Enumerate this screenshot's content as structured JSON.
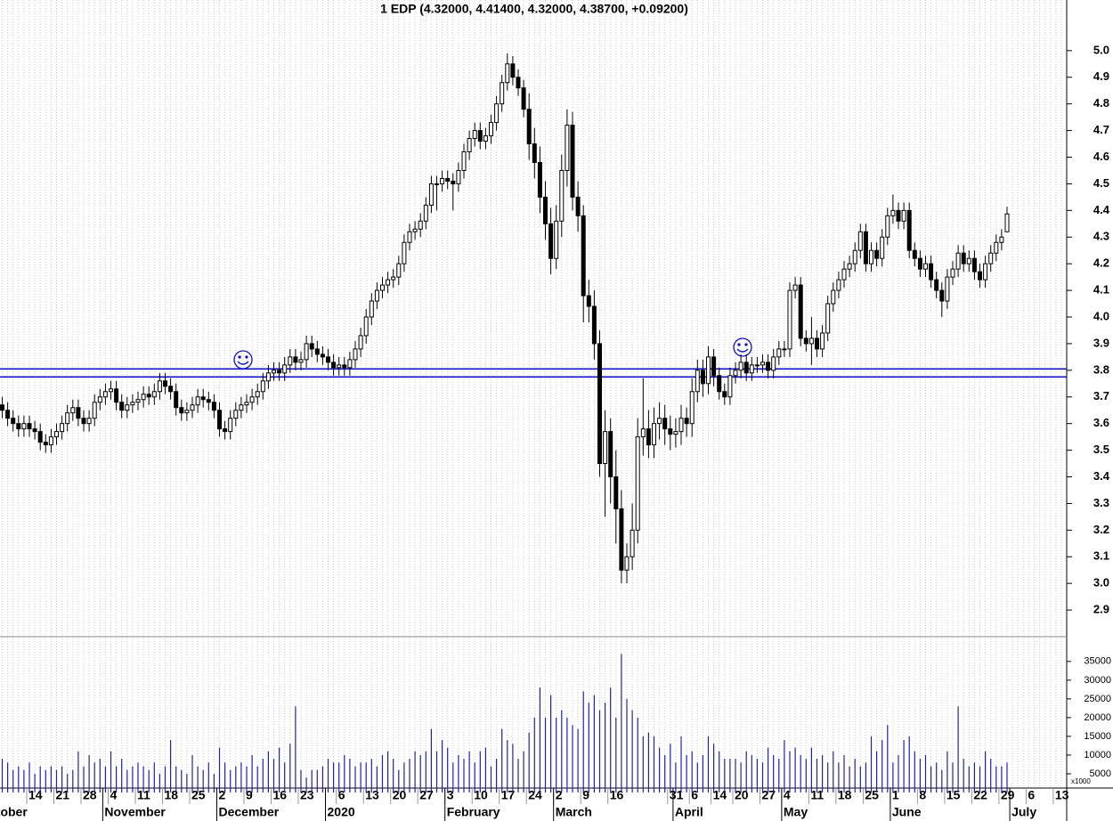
{
  "chart_data": {
    "type": "candlestick",
    "title": "1 EDP (4.32000, 4.41400, 4.32000, 4.38700, +0.09200)",
    "categories": [
      null,
      null,
      null,
      null,
      null,
      "14",
      null,
      null,
      null,
      null,
      "21",
      null,
      null,
      null,
      null,
      "28",
      null,
      null,
      null,
      null,
      "4",
      null,
      null,
      null,
      null,
      "11",
      null,
      null,
      null,
      null,
      "18",
      null,
      null,
      null,
      null,
      "25",
      null,
      null,
      null,
      null,
      "2",
      null,
      null,
      null,
      null,
      "9",
      null,
      null,
      null,
      null,
      "16",
      null,
      null,
      null,
      null,
      "23",
      null,
      null,
      null,
      null,
      null,
      null,
      "6",
      null,
      null,
      null,
      null,
      "13",
      null,
      null,
      null,
      null,
      "20",
      null,
      null,
      null,
      null,
      "27",
      null,
      null,
      null,
      null,
      "3",
      null,
      null,
      null,
      null,
      "10",
      null,
      null,
      null,
      null,
      "17",
      null,
      null,
      null,
      null,
      "24",
      null,
      null,
      null,
      null,
      "2",
      null,
      null,
      null,
      null,
      "9",
      null,
      null,
      null,
      null,
      "16",
      null,
      null,
      null,
      null,
      null,
      null,
      null,
      null,
      null,
      null,
      "31",
      null,
      null,
      null,
      "6",
      null,
      null,
      null,
      "14",
      null,
      null,
      null,
      "20",
      null,
      null,
      null,
      null,
      "27",
      null,
      null,
      null,
      "4",
      null,
      null,
      null,
      null,
      "11",
      null,
      null,
      null,
      null,
      "18",
      null,
      null,
      null,
      null,
      "25",
      null,
      null,
      null,
      null,
      "1",
      null,
      null,
      null,
      null,
      "8",
      null,
      null,
      null,
      null,
      "15",
      null,
      null,
      null,
      null,
      "22",
      null,
      null,
      null,
      null,
      "29",
      null,
      null,
      null,
      null,
      "6",
      null,
      null,
      null,
      null,
      "13",
      null
    ],
    "month_labels": [
      {
        "index": -4,
        "label": "October"
      },
      {
        "index": 19,
        "label": "November"
      },
      {
        "index": 40,
        "label": "December"
      },
      {
        "index": 60,
        "label": "2020"
      },
      {
        "index": 82,
        "label": "February"
      },
      {
        "index": 102,
        "label": "March"
      },
      {
        "index": 124,
        "label": "April"
      },
      {
        "index": 144,
        "label": "May"
      },
      {
        "index": 164,
        "label": "June"
      },
      {
        "index": 186,
        "label": "July"
      }
    ],
    "open": [
      3.67,
      3.65,
      3.62,
      3.6,
      3.58,
      3.6,
      3.58,
      3.57,
      3.53,
      3.52,
      3.55,
      3.57,
      3.6,
      3.64,
      3.66,
      3.62,
      3.6,
      3.62,
      3.68,
      3.7,
      3.72,
      3.73,
      3.68,
      3.65,
      3.67,
      3.68,
      3.69,
      3.71,
      3.7,
      3.72,
      3.76,
      3.74,
      3.72,
      3.66,
      3.64,
      3.65,
      3.67,
      3.7,
      3.69,
      3.68,
      3.65,
      3.58,
      3.57,
      3.62,
      3.65,
      3.67,
      3.68,
      3.7,
      3.72,
      3.76,
      3.79,
      3.8,
      3.79,
      3.82,
      3.85,
      3.83,
      3.84,
      3.9,
      3.88,
      3.86,
      3.85,
      3.83,
      3.81,
      3.82,
      3.81,
      3.84,
      3.88,
      3.93,
      4.0,
      4.06,
      4.1,
      4.12,
      4.14,
      4.15,
      4.2,
      4.28,
      4.32,
      4.33,
      4.36,
      4.42,
      4.5,
      4.5,
      4.52,
      4.51,
      4.5,
      4.55,
      4.62,
      4.67,
      4.7,
      4.66,
      4.68,
      4.73,
      4.8,
      4.88,
      4.95,
      4.9,
      4.86,
      4.78,
      4.65,
      4.58,
      4.45,
      4.35,
      4.22,
      4.36,
      4.55,
      4.72,
      4.45,
      4.38,
      4.08,
      4.04,
      3.9,
      3.45,
      3.57,
      3.4,
      3.28,
      3.05,
      3.1,
      3.2,
      3.55,
      3.58,
      3.52,
      3.6,
      3.62,
      3.58,
      3.56,
      3.57,
      3.62,
      3.6,
      3.72,
      3.8,
      3.75,
      3.85,
      3.78,
      3.72,
      3.7,
      3.78,
      3.8,
      3.83,
      3.79,
      3.82,
      3.82,
      3.83,
      3.8,
      3.85,
      3.88,
      3.88,
      4.1,
      4.12,
      3.92,
      3.9,
      3.92,
      3.88,
      3.94,
      4.05,
      4.1,
      4.14,
      4.18,
      4.2,
      4.25,
      4.32,
      4.2,
      4.25,
      4.22,
      4.3,
      4.38,
      4.4,
      4.36,
      4.4,
      4.25,
      4.22,
      4.18,
      4.2,
      4.14,
      4.1,
      4.06,
      4.15,
      4.18,
      4.24,
      4.2,
      4.22,
      4.17,
      4.14,
      4.2,
      4.24,
      4.28,
      4.32,
      null,
      null,
      null,
      null,
      null,
      null,
      null,
      null,
      null,
      null
    ],
    "high": [
      3.7,
      3.68,
      3.65,
      3.63,
      3.63,
      3.63,
      3.61,
      3.6,
      3.56,
      3.58,
      3.6,
      3.63,
      3.67,
      3.69,
      3.69,
      3.65,
      3.65,
      3.71,
      3.73,
      3.75,
      3.76,
      3.76,
      3.71,
      3.7,
      3.71,
      3.72,
      3.74,
      3.74,
      3.75,
      3.79,
      3.79,
      3.77,
      3.75,
      3.69,
      3.68,
      3.7,
      3.73,
      3.73,
      3.72,
      3.71,
      3.68,
      3.61,
      3.65,
      3.68,
      3.7,
      3.71,
      3.73,
      3.75,
      3.79,
      3.82,
      3.83,
      3.83,
      3.85,
      3.88,
      3.88,
      3.87,
      3.93,
      3.93,
      3.91,
      3.89,
      3.88,
      3.86,
      3.85,
      3.85,
      3.87,
      3.91,
      3.96,
      4.03,
      4.09,
      4.13,
      4.15,
      4.17,
      4.18,
      4.23,
      4.31,
      4.35,
      4.36,
      4.39,
      4.45,
      4.53,
      4.53,
      4.55,
      4.55,
      4.54,
      4.58,
      4.65,
      4.7,
      4.73,
      4.73,
      4.71,
      4.76,
      4.83,
      4.91,
      4.99,
      4.98,
      4.93,
      4.89,
      4.84,
      4.71,
      4.64,
      4.51,
      4.41,
      4.42,
      4.61,
      4.78,
      4.77,
      4.51,
      4.42,
      4.14,
      4.1,
      3.95,
      3.65,
      3.62,
      3.5,
      3.35,
      3.15,
      3.3,
      3.62,
      3.77,
      3.65,
      3.66,
      3.68,
      3.67,
      3.63,
      3.62,
      3.67,
      3.66,
      3.77,
      3.84,
      3.84,
      3.89,
      3.88,
      3.81,
      3.75,
      3.81,
      3.83,
      3.86,
      3.86,
      3.85,
      3.85,
      3.86,
      3.86,
      3.88,
      3.91,
      3.91,
      4.13,
      4.15,
      4.15,
      3.95,
      4.0,
      3.95,
      3.97,
      4.08,
      4.13,
      4.17,
      4.21,
      4.23,
      4.28,
      4.35,
      4.35,
      4.28,
      4.28,
      4.33,
      4.41,
      4.46,
      4.43,
      4.43,
      4.43,
      4.28,
      4.25,
      4.23,
      4.23,
      4.17,
      4.13,
      4.18,
      4.21,
      4.27,
      4.27,
      4.25,
      4.25,
      4.2,
      4.23,
      4.27,
      4.31,
      4.33,
      4.414,
      null,
      null,
      null,
      null,
      null,
      null,
      null,
      null,
      null,
      null
    ],
    "low": [
      3.62,
      3.59,
      3.57,
      3.55,
      3.55,
      3.55,
      3.54,
      3.5,
      3.49,
      3.49,
      3.52,
      3.54,
      3.57,
      3.61,
      3.59,
      3.57,
      3.57,
      3.59,
      3.65,
      3.67,
      3.69,
      3.65,
      3.62,
      3.62,
      3.64,
      3.65,
      3.66,
      3.67,
      3.67,
      3.69,
      3.71,
      3.69,
      3.63,
      3.61,
      3.61,
      3.62,
      3.64,
      3.66,
      3.65,
      3.62,
      3.55,
      3.54,
      3.54,
      3.59,
      3.62,
      3.64,
      3.65,
      3.67,
      3.69,
      3.73,
      3.76,
      3.76,
      3.76,
      3.79,
      3.8,
      3.8,
      3.81,
      3.85,
      3.83,
      3.82,
      3.8,
      3.78,
      3.78,
      3.78,
      3.78,
      3.81,
      3.85,
      3.9,
      3.97,
      4.03,
      4.07,
      4.09,
      4.11,
      4.12,
      4.17,
      4.25,
      4.29,
      4.3,
      4.33,
      4.39,
      4.4,
      4.47,
      4.48,
      4.4,
      4.47,
      4.52,
      4.59,
      4.64,
      4.63,
      4.63,
      4.65,
      4.7,
      4.77,
      4.85,
      4.87,
      4.83,
      4.75,
      4.59,
      4.52,
      4.39,
      4.29,
      4.16,
      4.18,
      4.3,
      4.49,
      4.4,
      4.32,
      3.98,
      3.98,
      3.84,
      3.4,
      3.25,
      3.3,
      3.15,
      3.0,
      3.0,
      3.05,
      3.15,
      3.48,
      3.47,
      3.47,
      3.54,
      3.52,
      3.5,
      3.51,
      3.52,
      3.55,
      3.55,
      3.68,
      3.7,
      3.71,
      3.74,
      3.69,
      3.67,
      3.67,
      3.75,
      3.77,
      3.76,
      3.76,
      3.79,
      3.79,
      3.77,
      3.77,
      3.82,
      3.85,
      3.85,
      4.07,
      3.89,
      3.87,
      3.82,
      3.85,
      3.85,
      3.91,
      4.02,
      4.07,
      4.11,
      4.15,
      4.17,
      4.22,
      4.17,
      4.17,
      4.19,
      4.19,
      4.27,
      4.35,
      4.33,
      4.33,
      4.22,
      4.19,
      4.15,
      4.15,
      4.11,
      4.07,
      4.0,
      4.03,
      4.12,
      4.15,
      4.17,
      4.17,
      4.14,
      4.11,
      4.11,
      4.17,
      4.21,
      4.25,
      4.32,
      null,
      null,
      null,
      null,
      null,
      null,
      null,
      null,
      null,
      null
    ],
    "close": [
      3.65,
      3.62,
      3.6,
      3.58,
      3.6,
      3.58,
      3.57,
      3.53,
      3.52,
      3.55,
      3.57,
      3.6,
      3.64,
      3.66,
      3.62,
      3.6,
      3.62,
      3.68,
      3.7,
      3.72,
      3.73,
      3.68,
      3.65,
      3.67,
      3.68,
      3.69,
      3.71,
      3.7,
      3.72,
      3.76,
      3.74,
      3.72,
      3.66,
      3.64,
      3.65,
      3.67,
      3.7,
      3.69,
      3.68,
      3.65,
      3.58,
      3.57,
      3.62,
      3.65,
      3.67,
      3.68,
      3.7,
      3.72,
      3.76,
      3.79,
      3.8,
      3.79,
      3.82,
      3.85,
      3.83,
      3.84,
      3.9,
      3.88,
      3.86,
      3.85,
      3.83,
      3.81,
      3.82,
      3.81,
      3.84,
      3.88,
      3.93,
      4.0,
      4.06,
      4.1,
      4.12,
      4.14,
      4.15,
      4.2,
      4.28,
      4.32,
      4.33,
      4.36,
      4.42,
      4.5,
      4.5,
      4.52,
      4.51,
      4.5,
      4.55,
      4.62,
      4.67,
      4.7,
      4.66,
      4.68,
      4.73,
      4.8,
      4.88,
      4.95,
      4.9,
      4.86,
      4.78,
      4.65,
      4.58,
      4.45,
      4.35,
      4.22,
      4.36,
      4.55,
      4.72,
      4.45,
      4.38,
      4.08,
      4.04,
      3.9,
      3.45,
      3.57,
      3.4,
      3.28,
      3.05,
      3.1,
      3.2,
      3.55,
      3.58,
      3.52,
      3.6,
      3.62,
      3.58,
      3.56,
      3.57,
      3.62,
      3.6,
      3.72,
      3.8,
      3.75,
      3.85,
      3.78,
      3.72,
      3.7,
      3.78,
      3.8,
      3.83,
      3.79,
      3.82,
      3.82,
      3.83,
      3.8,
      3.85,
      3.88,
      3.88,
      4.1,
      4.12,
      3.92,
      3.9,
      3.92,
      3.88,
      3.94,
      4.05,
      4.1,
      4.14,
      4.18,
      4.2,
      4.25,
      4.32,
      4.2,
      4.25,
      4.22,
      4.3,
      4.38,
      4.4,
      4.36,
      4.4,
      4.25,
      4.22,
      4.18,
      4.2,
      4.14,
      4.1,
      4.06,
      4.15,
      4.18,
      4.24,
      4.2,
      4.22,
      4.17,
      4.14,
      4.2,
      4.24,
      4.28,
      4.3,
      4.387,
      null,
      null,
      null,
      null,
      null,
      null,
      null,
      null,
      null,
      null
    ],
    "volume": [
      9000,
      8000,
      6000,
      7000,
      6000,
      8000,
      5000,
      7000,
      6000,
      7000,
      6000,
      7000,
      5000,
      6000,
      11000,
      7000,
      10000,
      8000,
      9000,
      7000,
      11000,
      7000,
      9000,
      6000,
      7000,
      8000,
      7000,
      6000,
      8000,
      5000,
      7000,
      14000,
      7000,
      6000,
      5000,
      10000,
      7000,
      6000,
      8000,
      5000,
      12000,
      8000,
      6000,
      7000,
      8000,
      7000,
      10000,
      7000,
      9000,
      11000,
      9000,
      12000,
      8000,
      13000,
      23000,
      6000,
      4000,
      6000,
      6000,
      7000,
      9000,
      8000,
      8000,
      10000,
      9000,
      7000,
      8000,
      8000,
      9000,
      7000,
      10000,
      11000,
      9000,
      6000,
      8000,
      9000,
      11000,
      10000,
      11000,
      17000,
      11000,
      14000,
      12000,
      8000,
      10000,
      9000,
      11000,
      8000,
      11000,
      12000,
      7000,
      9000,
      17000,
      14000,
      13000,
      9000,
      11000,
      16000,
      20000,
      28000,
      20000,
      26000,
      20000,
      22000,
      20000,
      18000,
      17000,
      27000,
      24000,
      26000,
      22000,
      24000,
      28000,
      20000,
      37000,
      25000,
      22000,
      20000,
      15000,
      16000,
      15000,
      12000,
      10000,
      13000,
      8000,
      15000,
      10000,
      11000,
      8000,
      10000,
      15000,
      13000,
      11000,
      9000,
      9000,
      9000,
      8000,
      11000,
      10000,
      9000,
      8000,
      12000,
      10000,
      9000,
      14000,
      11000,
      12000,
      10000,
      9000,
      12000,
      9000,
      10000,
      8000,
      11000,
      8000,
      10000,
      7000,
      9000,
      7000,
      8000,
      15000,
      11000,
      14000,
      18000,
      8000,
      10000,
      14000,
      15000,
      11000,
      9000,
      10000,
      7000,
      8000,
      6000,
      11000,
      8000,
      23000,
      9000,
      7000,
      8000,
      7000,
      11000,
      9000,
      7000,
      7000,
      8000,
      null,
      null,
      null,
      null,
      null,
      null,
      null,
      null,
      null,
      null
    ],
    "ylim": [
      2.8,
      5.19
    ],
    "yticks": [
      2.9,
      {
        "value": 3,
        "label": "3.0"
      },
      3.1,
      3.2,
      3.3,
      3.4,
      3.5,
      3.6,
      3.7,
      3.8,
      3.9,
      {
        "value": 4,
        "label": "4.0"
      },
      4.1,
      4.2,
      4.3,
      4.4,
      4.5,
      4.6,
      4.7,
      4.8,
      4.9,
      {
        "value": 5,
        "label": "5.0"
      }
    ],
    "volume_ylim": [
      0,
      39000
    ],
    "volume_yticks": [
      5000,
      10000,
      15000,
      20000,
      25000,
      30000,
      35000
    ],
    "volume_unit_label": "x1000",
    "hlines": [
      3.805,
      3.775
    ],
    "hline_color": "#1010c8",
    "volume_color": "#2020b0",
    "up_color": "#ffffff",
    "down_color": "#000000",
    "grid": true
  }
}
